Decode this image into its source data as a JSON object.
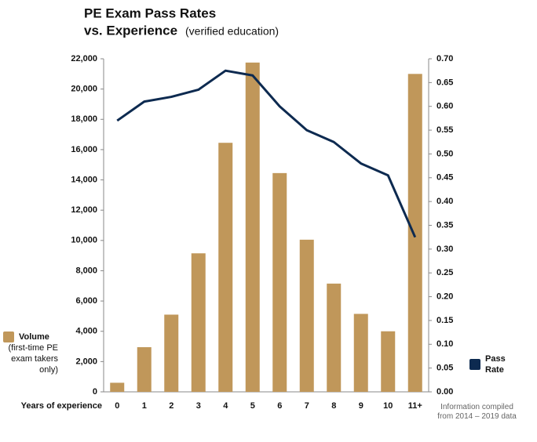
{
  "chart_data": {
    "type": "bar-line",
    "title_lines": [
      "PE Exam Pass Rates",
      "vs. Experience"
    ],
    "subtitle": "(verified education)",
    "x_label": "Years of experience",
    "note": "Information compiled from 2014 – 2019 data",
    "categories": [
      "0",
      "1",
      "2",
      "3",
      "4",
      "5",
      "6",
      "7",
      "8",
      "9",
      "10",
      "11+"
    ],
    "series": [
      {
        "name": "Volume",
        "legend_note": "(first-time PE exam takers only)",
        "color": "#c0975a",
        "type": "bar",
        "values": [
          600,
          2950,
          5100,
          9150,
          16450,
          21750,
          14450,
          10050,
          7150,
          5150,
          4000,
          21000
        ]
      },
      {
        "name": "Pass Rate",
        "color": "#0d2a50",
        "type": "line",
        "axis": "y2",
        "values": [
          0.57,
          0.61,
          0.62,
          0.635,
          0.675,
          0.665,
          0.6,
          0.55,
          0.525,
          0.48,
          0.455,
          0.325
        ]
      }
    ],
    "ylim": [
      0,
      22000
    ],
    "yticks": [
      0,
      {
        "value": 2000,
        "label": "2,000"
      },
      {
        "value": 4000,
        "label": "4,000"
      },
      {
        "value": 6000,
        "label": "6,000"
      },
      {
        "value": 8000,
        "label": "8,000"
      },
      {
        "value": 10000,
        "label": "10,000"
      },
      {
        "value": 12000,
        "label": "12,000"
      },
      {
        "value": 14000,
        "label": "14,000"
      },
      {
        "value": 16000,
        "label": "16,000"
      },
      {
        "value": 18000,
        "label": "18,000"
      },
      {
        "value": 20000,
        "label": "20,000"
      },
      {
        "value": 22000,
        "label": "22,000"
      }
    ],
    "y2lim": [
      0,
      0.7
    ],
    "y2ticks": [
      {
        "value": 0,
        "label": "0.00"
      },
      {
        "value": 0.05,
        "label": "0.05"
      },
      {
        "value": 0.1,
        "label": "0.10"
      },
      {
        "value": 0.15,
        "label": "0.15"
      },
      {
        "value": 0.2,
        "label": "0.20"
      },
      {
        "value": 0.25,
        "label": "0.25"
      },
      {
        "value": 0.3,
        "label": "0.30"
      },
      {
        "value": 0.35,
        "label": "0.35"
      },
      {
        "value": 0.4,
        "label": "0.40"
      },
      {
        "value": 0.45,
        "label": "0.45"
      },
      {
        "value": 0.5,
        "label": "0.50"
      },
      {
        "value": 0.55,
        "label": "0.55"
      },
      {
        "value": 0.6,
        "label": "0.60"
      },
      {
        "value": 0.65,
        "label": "0.65"
      },
      {
        "value": 0.7,
        "label": "0.70"
      }
    ],
    "grid": false
  }
}
